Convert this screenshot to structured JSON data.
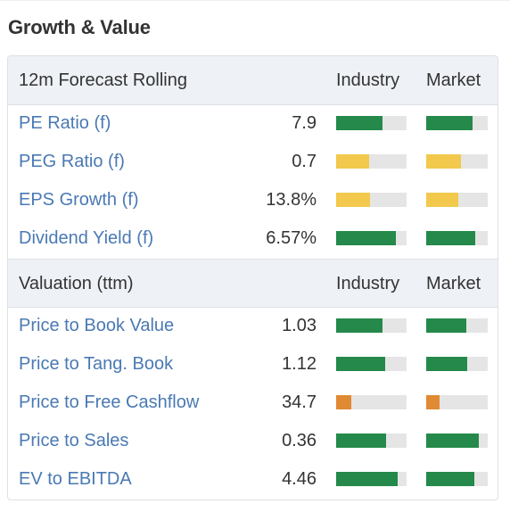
{
  "title": "Growth & Value",
  "colors": {
    "green": "#24894a",
    "yellow": "#f2c94c",
    "orange": "#e08a33",
    "track": "#e5e5e5",
    "link": "#4a79b3"
  },
  "forecast": {
    "header": "12m Forecast Rolling",
    "industry_label": "Industry",
    "market_label": "Market",
    "rows": [
      {
        "label": "PE Ratio (f)",
        "value": "7.9",
        "industry": 0.66,
        "market": 0.75,
        "color": "green"
      },
      {
        "label": "PEG Ratio (f)",
        "value": "0.7",
        "industry": 0.47,
        "market": 0.56,
        "color": "yellow"
      },
      {
        "label": "EPS Growth (f)",
        "value": "13.8%",
        "industry": 0.48,
        "market": 0.52,
        "color": "yellow"
      },
      {
        "label": "Dividend Yield (f)",
        "value": "6.57%",
        "industry": 0.85,
        "market": 0.8,
        "color": "green"
      }
    ]
  },
  "valuation": {
    "header": "Valuation (ttm)",
    "industry_label": "Industry",
    "market_label": "Market",
    "rows": [
      {
        "label": "Price to Book Value",
        "value": "1.03",
        "industry": 0.66,
        "market": 0.65,
        "color": "green"
      },
      {
        "label": "Price to Tang. Book",
        "value": "1.12",
        "industry": 0.69,
        "market": 0.67,
        "color": "green"
      },
      {
        "label": "Price to Free Cashflow",
        "value": "34.7",
        "industry": 0.22,
        "market": 0.22,
        "color": "orange"
      },
      {
        "label": "Price to Sales",
        "value": "0.36",
        "industry": 0.71,
        "market": 0.86,
        "color": "green"
      },
      {
        "label": "EV to EBITDA",
        "value": "4.46",
        "industry": 0.87,
        "market": 0.78,
        "color": "green"
      }
    ]
  }
}
